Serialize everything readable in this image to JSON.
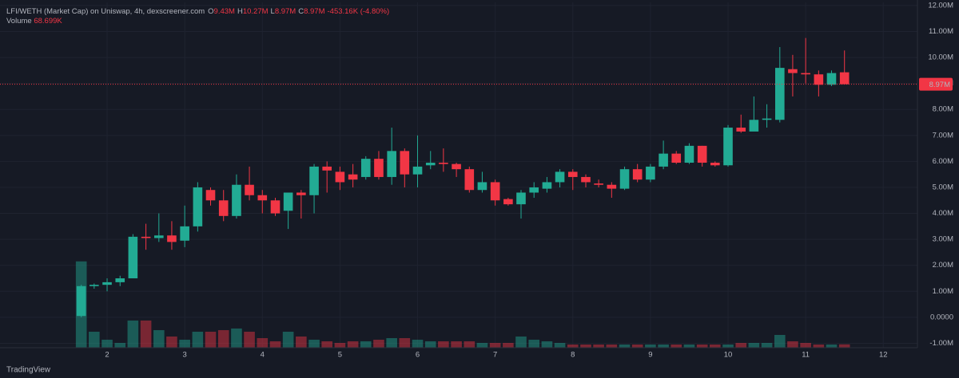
{
  "chart_data": {
    "type": "candlestick",
    "title": "LFI/WETH (Market Cap) on Uniswap, 4h, dexscreener.com",
    "legend_items": [
      {
        "label": "O",
        "value": "9.43M"
      },
      {
        "label": "H",
        "value": "10.27M"
      },
      {
        "label": "L",
        "value": "8.97M"
      },
      {
        "label": "C",
        "value": "8.97M"
      }
    ],
    "change_label": "-453.16K (-4.80%)",
    "volume_title": "Volume",
    "volume_value_label": "68.699K",
    "last_price": {
      "value": 8.97,
      "label": "8.97M"
    },
    "footer": "TradingView",
    "up_color": "#22ab94",
    "down_color": "#f23645",
    "x": [
      1.667,
      1.833,
      2,
      2.167,
      2.333,
      2.5,
      2.667,
      2.833,
      3,
      3.167,
      3.333,
      3.5,
      3.667,
      3.833,
      4,
      4.167,
      4.333,
      4.5,
      4.667,
      4.833,
      5,
      5.167,
      5.333,
      5.5,
      5.667,
      5.833,
      6,
      6.167,
      6.333,
      6.5,
      6.667,
      6.833,
      7,
      7.167,
      7.333,
      7.5,
      7.667,
      7.833,
      8,
      8.167,
      8.333,
      8.5,
      8.667,
      8.833,
      9,
      9.167,
      9.333,
      9.5,
      9.667,
      9.833,
      10,
      10.167,
      10.333,
      10.5,
      10.667,
      10.833,
      11,
      11.167,
      11.333,
      11.5
    ],
    "open": [
      0.05,
      1.2,
      1.25,
      1.35,
      1.5,
      3.1,
      3.05,
      3.15,
      2.95,
      3.5,
      4.9,
      4.5,
      3.9,
      5.1,
      4.7,
      4.5,
      4.1,
      4.8,
      4.7,
      5.8,
      5.6,
      5.5,
      5.4,
      6.1,
      5.4,
      6.4,
      5.5,
      5.85,
      5.95,
      5.9,
      5.7,
      4.9,
      5.2,
      4.55,
      4.35,
      4.8,
      4.95,
      5.2,
      5.6,
      5.4,
      5.15,
      5.1,
      4.95,
      5.7,
      5.3,
      5.8,
      6.3,
      5.95,
      6.6,
      5.95,
      5.85,
      7.3,
      7.15,
      7.6,
      7.6,
      9.55,
      9.4,
      9.35,
      8.95,
      9.43
    ],
    "high": [
      1.25,
      1.3,
      1.5,
      1.6,
      3.2,
      3.6,
      4.0,
      3.7,
      4.3,
      5.2,
      5.0,
      4.9,
      5.5,
      5.8,
      4.9,
      4.6,
      4.8,
      4.9,
      5.9,
      6.0,
      5.8,
      5.9,
      6.2,
      6.4,
      7.3,
      6.5,
      7.0,
      6.4,
      6.5,
      5.95,
      5.8,
      5.6,
      5.3,
      4.6,
      4.9,
      5.2,
      5.4,
      5.7,
      5.7,
      5.5,
      5.3,
      5.2,
      5.8,
      5.9,
      5.9,
      6.8,
      6.4,
      6.7,
      6.6,
      6.0,
      7.4,
      7.8,
      8.5,
      8.2,
      10.4,
      10.1,
      10.75,
      9.5,
      9.5,
      10.27
    ],
    "low": [
      0.0,
      1.1,
      1.0,
      1.2,
      1.5,
      2.6,
      2.9,
      2.6,
      2.7,
      3.3,
      4.3,
      3.7,
      3.8,
      4.5,
      4.0,
      3.9,
      3.4,
      3.8,
      4.0,
      4.8,
      4.9,
      5.0,
      5.3,
      5.3,
      5.1,
      5.0,
      5.0,
      5.7,
      5.6,
      5.4,
      4.8,
      4.8,
      4.3,
      4.3,
      3.8,
      4.6,
      4.8,
      5.0,
      4.9,
      5.0,
      5.0,
      4.6,
      4.9,
      5.2,
      5.2,
      5.7,
      5.9,
      5.9,
      5.8,
      5.8,
      5.8,
      7.1,
      7.2,
      7.3,
      7.5,
      8.5,
      9.0,
      8.5,
      8.9,
      8.97
    ],
    "close": [
      1.2,
      1.25,
      1.35,
      1.5,
      3.1,
      3.05,
      3.15,
      2.9,
      3.5,
      5.0,
      4.5,
      3.9,
      5.1,
      4.7,
      4.5,
      4.0,
      4.8,
      4.7,
      5.8,
      5.65,
      5.2,
      5.3,
      6.1,
      5.4,
      6.4,
      5.5,
      5.8,
      5.95,
      5.9,
      5.7,
      4.9,
      5.2,
      4.5,
      4.35,
      4.8,
      5.0,
      5.2,
      5.6,
      5.4,
      5.2,
      5.1,
      4.95,
      5.7,
      5.3,
      5.8,
      6.3,
      5.95,
      6.6,
      5.95,
      5.85,
      7.3,
      7.15,
      7.6,
      7.65,
      9.6,
      9.4,
      9.35,
      8.95,
      9.4,
      8.97
    ],
    "volume": [
      1750,
      324,
      162,
      97,
      551,
      551,
      356,
      227,
      162,
      324,
      324,
      356,
      389,
      324,
      194,
      130,
      324,
      227,
      162,
      130,
      97,
      130,
      130,
      162,
      194,
      194,
      162,
      130,
      130,
      130,
      130,
      97,
      97,
      97,
      227,
      162,
      130,
      97,
      65,
      65,
      65,
      65,
      65,
      65,
      65,
      65,
      65,
      65,
      65,
      65,
      65,
      97,
      97,
      97,
      259,
      130,
      97,
      65,
      65,
      68.699
    ],
    "xlim": [
      0.62,
      12.44
    ],
    "xticks": [
      2,
      3,
      4,
      5,
      6,
      7,
      8,
      9,
      10,
      11,
      12
    ],
    "ylim": [
      -1.17,
      12.12
    ],
    "y2lim": [
      0,
      7000
    ],
    "yticks": [
      {
        "value": -1,
        "label": "-1.00M"
      },
      {
        "value": 0,
        "label": "0.0000"
      },
      {
        "value": 1,
        "label": "1.00M"
      },
      {
        "value": 2,
        "label": "2.00M"
      },
      {
        "value": 3,
        "label": "3.00M"
      },
      {
        "value": 4,
        "label": "4.00M"
      },
      {
        "value": 5,
        "label": "5.00M"
      },
      {
        "value": 6,
        "label": "6.00M"
      },
      {
        "value": 7,
        "label": "7.00M"
      },
      {
        "value": 8,
        "label": "8.00M"
      },
      {
        "value": 9,
        "label": "9.00M"
      },
      {
        "value": 10,
        "label": "10.00M"
      },
      {
        "value": 11,
        "label": "11.00M"
      },
      {
        "value": 12,
        "label": "12.00M"
      }
    ],
    "grid": true
  }
}
